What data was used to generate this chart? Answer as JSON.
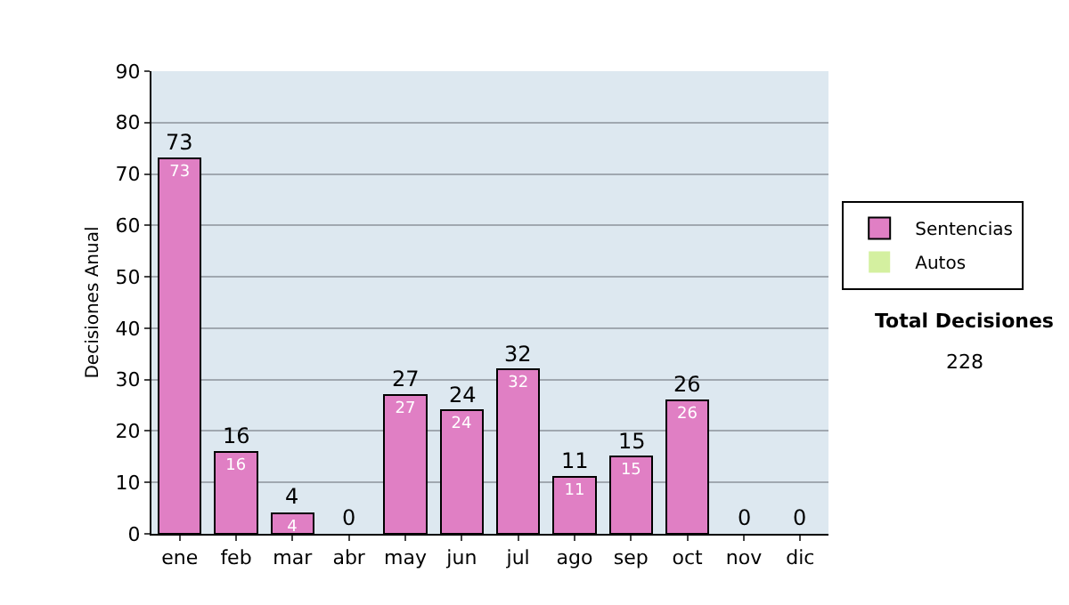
{
  "chart_data": {
    "type": "bar",
    "ylabel": "Decisiones Anual",
    "categories": [
      "ene",
      "feb",
      "mar",
      "abr",
      "may",
      "jun",
      "jul",
      "ago",
      "sep",
      "oct",
      "nov",
      "dic"
    ],
    "stacked": true,
    "series": [
      {
        "name": "Sentencias",
        "color": "#e07fc4",
        "values": [
          73,
          16,
          4,
          0,
          27,
          24,
          32,
          11,
          15,
          26,
          0,
          0
        ],
        "value_labels": [
          "73",
          "16",
          "4",
          null,
          "27",
          "24",
          "32",
          "11",
          "15",
          "26",
          null,
          null
        ]
      },
      {
        "name": "Autos",
        "color": "#d4f0a0",
        "values": [
          0,
          0,
          0,
          0,
          0,
          0,
          0,
          0,
          0,
          0,
          0,
          0
        ]
      }
    ],
    "totals": [
      "73",
      "16",
      "4",
      "0",
      "27",
      "24",
      "32",
      "11",
      "15",
      "26",
      "0",
      "0"
    ],
    "ylim": [
      0,
      90
    ],
    "yticks": [
      0,
      10,
      20,
      30,
      40,
      50,
      60,
      70,
      80,
      90
    ],
    "grid": "y",
    "legend": "right",
    "annotations": [
      "Total Decisiones",
      "228"
    ]
  }
}
